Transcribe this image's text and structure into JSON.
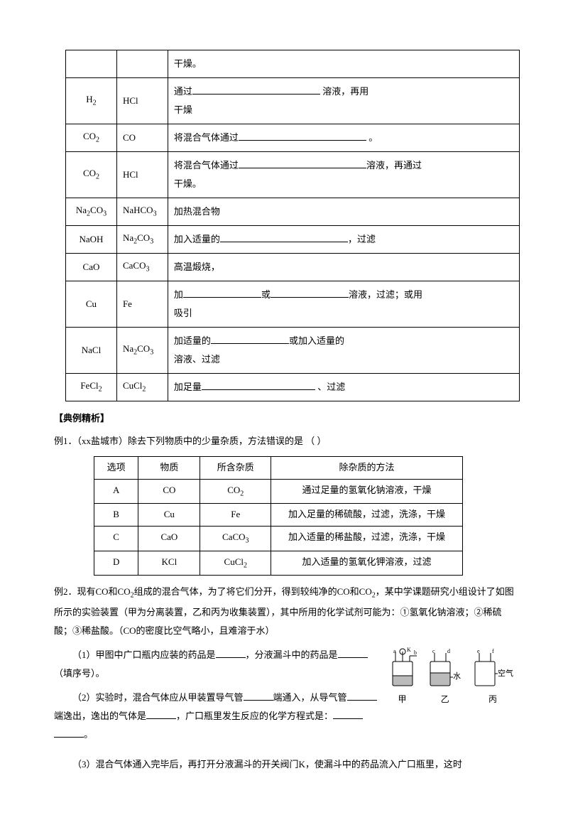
{
  "table1": {
    "rows": [
      {
        "c1": "",
        "c2": "",
        "c3_parts": [
          "干燥。"
        ]
      },
      {
        "c1": "H₂",
        "c2": "HCl",
        "c3_parts": [
          "通过",
          {
            "blank": "lg"
          },
          " 溶液，再用",
          {
            "br": true
          },
          "干燥"
        ]
      },
      {
        "c1": "CO₂",
        "c2": "CO",
        "c3_parts": [
          "将混合气体通过",
          {
            "blank": "lg"
          },
          " 。"
        ]
      },
      {
        "c1": "CO₂",
        "c2": "HCl",
        "c3_parts": [
          "将混合气体通过",
          {
            "blank": "lg"
          },
          "溶液，再通过",
          {
            "br": true
          },
          "干燥。"
        ]
      },
      {
        "c1": "Na₂CO₃",
        "c2": "NaHCO₃",
        "c3_parts": [
          "加热混合物"
        ]
      },
      {
        "c1": "NaOH",
        "c2": "Na₂CO₃",
        "c3_parts": [
          "加入适量的",
          {
            "blank": "lg"
          },
          "，过滤"
        ]
      },
      {
        "c1": "CaO",
        "c2": "CaCO₃",
        "c3_parts": [
          "高温煅烧，"
        ]
      },
      {
        "c1": "Cu",
        "c2": "Fe",
        "c3_parts": [
          "加",
          {
            "blank": "sm"
          },
          "或",
          {
            "blank": "sm"
          },
          "溶液，过滤；或用",
          {
            "br": true
          },
          "吸引"
        ]
      },
      {
        "c1": "NaCl",
        "c2": "Na₂CO₃",
        "c3_parts": [
          "加适量的",
          {
            "blank": "sm"
          },
          "或加入适量的",
          {
            "br": true
          },
          "溶液、过滤"
        ]
      },
      {
        "c1": "FeCl₂",
        "c2": "CuCl₂",
        "c3_parts": [
          "加足量",
          {
            "blank": "md"
          },
          " 、过滤"
        ]
      }
    ]
  },
  "section_title": "【典例精析】",
  "ex1": {
    "stem": "例1．（xx盐城市）除去下列物质中的少量杂质，方法错误的是  （     ）",
    "headers": [
      "选项",
      "物质",
      "所含杂质",
      "除杂质的方法"
    ],
    "rows": [
      [
        "A",
        "CO",
        "CO₂",
        "通过足量的氢氧化钠溶液，干燥"
      ],
      [
        "B",
        "Cu",
        "Fe",
        "加入足量的稀硫酸，过滤，洗涤，干燥"
      ],
      [
        "C",
        "CaO",
        "CaCO₃",
        "加入适量的稀盐酸，过滤，洗涤，干燥"
      ],
      [
        "D",
        "KCl",
        "CuCl₂",
        "加入适量的氢氧化钾溶液，过滤"
      ]
    ]
  },
  "ex2": {
    "p1a": "例2．现有CO和CO",
    "p1b": "组成的混合气体，为了将它们分开，得到较纯净的CO和CO",
    "p1c": "，某中学课题研究小组设计了如图所示的实验装置（甲为分离装置，乙和丙为收集装置），其中所用的化学试剂可能为：①氢氧化钠溶液；②稀硫酸；③稀盐酸。（CO的密度比空气略小，且难溶于水）",
    "q1a": "（1）甲图中广口瓶内应装的药品是",
    "q1b": "，分液漏斗中的药品是",
    "q1c": "（填序号）。",
    "q2a": "（2）实验时，混合气体应从甲装置导气管",
    "q2b": "端通入，从导气管",
    "q2c": "端逸出，逸出的气体是",
    "q2d": "，广口瓶里发生反应的化学方程式是：",
    "q2e": "。",
    "q3": "（3）混合气体通入完毕后，再打开分液漏斗的开关阀门K，使漏斗中的药品流入广口瓶里，这时",
    "flasks": {
      "l1": "甲",
      "l2": "乙",
      "l3": "丙",
      "water": "水",
      "air": "空气"
    }
  }
}
